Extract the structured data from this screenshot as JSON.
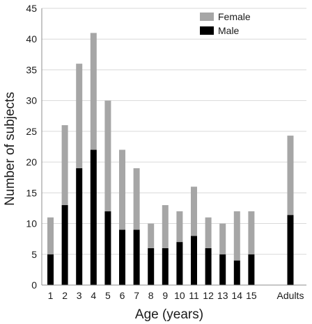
{
  "chart_data": {
    "type": "bar",
    "stacked": true,
    "title": "",
    "xlabel": "Age (years)",
    "ylabel": "Number of subjects",
    "ylim": [
      0,
      45
    ],
    "yticks": [
      0,
      5,
      10,
      15,
      20,
      25,
      30,
      35,
      40,
      45
    ],
    "grid": "horizontal",
    "legend_position": "top-right",
    "categories": [
      "1",
      "2",
      "3",
      "4",
      "5",
      "6",
      "7",
      "8",
      "9",
      "10",
      "11",
      "12",
      "13",
      "14",
      "15",
      "Adults"
    ],
    "series": [
      {
        "name": "Male",
        "color": "#000000",
        "values": [
          5,
          13,
          19,
          22,
          12,
          9,
          9,
          6,
          6,
          7,
          8,
          6,
          5,
          4,
          5,
          11.4
        ]
      },
      {
        "name": "Female",
        "color": "#a6a6a6",
        "values": [
          6,
          13,
          17,
          19,
          18,
          13,
          10,
          4,
          7,
          5,
          8,
          5,
          5,
          8,
          7,
          12.9
        ]
      }
    ]
  }
}
